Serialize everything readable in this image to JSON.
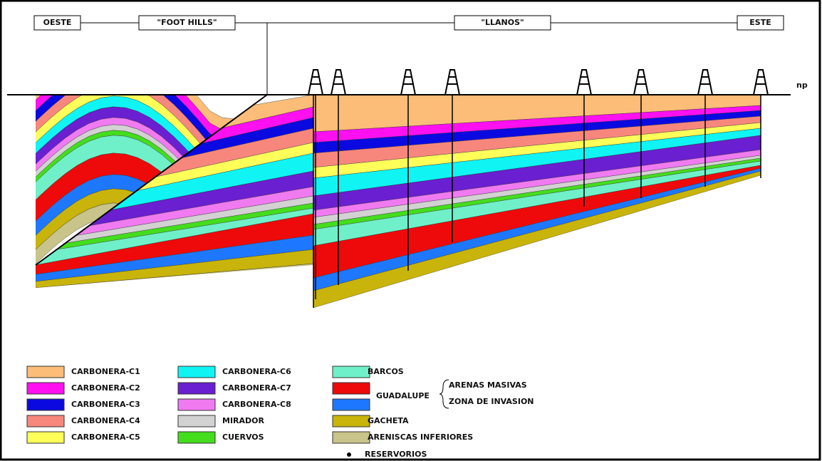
{
  "section_labels": [
    "OESTE",
    "\"FOOT HILLS\"",
    "\"LLANOS\"",
    "ESTE"
  ],
  "surface_label": "np",
  "legend": [
    {
      "label": "CARBONERA-C1",
      "color": "#fbbd78"
    },
    {
      "label": "CARBONERA-C2",
      "color": "#ff10f0"
    },
    {
      "label": "CARBONERA-C3",
      "color": "#0a0ae0"
    },
    {
      "label": "CARBONERA-C4",
      "color": "#f7877d"
    },
    {
      "label": "CARBONERA-C5",
      "color": "#ffff5a"
    },
    {
      "label": "CARBONERA-C6",
      "color": "#10f4f4"
    },
    {
      "label": "CARBONERA-C7",
      "color": "#6a1fd0"
    },
    {
      "label": "CARBONERA-C8",
      "color": "#f07af0"
    },
    {
      "label": "MIRADOR",
      "color": "#d2d2d2"
    },
    {
      "label": "CUERVOS",
      "color": "#44dd1e"
    },
    {
      "label": "BARCOS",
      "color": "#70f0c8"
    },
    {
      "label": "GUADALUPE",
      "parts": [
        {
          "label": "ARENAS MASIVAS",
          "color": "#ee0a0a"
        },
        {
          "label": "ZONA DE INVASION",
          "color": "#1e78ff"
        }
      ]
    },
    {
      "label": "GACHETA",
      "color": "#c8b40a"
    },
    {
      "label": "ARENISCAS INFERIORES",
      "color": "#c8c48a"
    }
  ],
  "reservoirs": {
    "label": "RESERVORIOS"
  }
}
